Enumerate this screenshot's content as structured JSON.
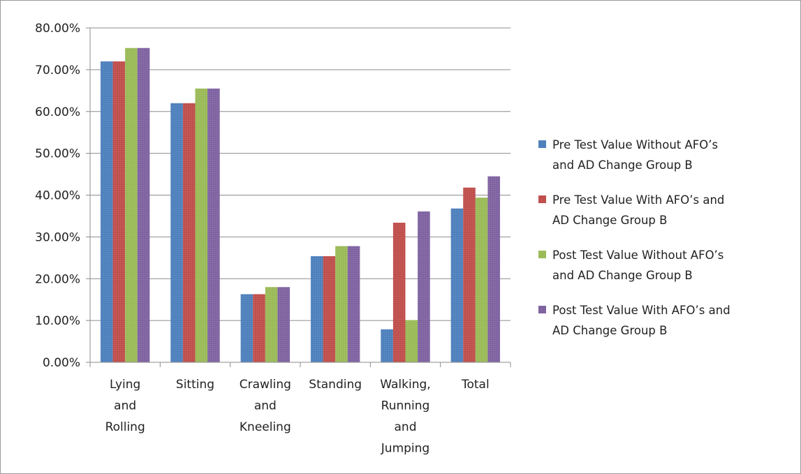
{
  "chart_data": {
    "type": "bar",
    "title": "",
    "xlabel": "",
    "ylabel": "",
    "ylim": [
      0,
      0.8
    ],
    "y_tick_labels": [
      "0.00%",
      "10.00%",
      "20.00%",
      "30.00%",
      "40.00%",
      "50.00%",
      "60.00%",
      "70.00%",
      "80.00%"
    ],
    "grid": true,
    "legend_position": "right",
    "categories": [
      [
        "Lying",
        "and",
        "Rolling"
      ],
      [
        "Sitting"
      ],
      [
        "Crawling",
        "and",
        "Kneeling"
      ],
      [
        "Standing"
      ],
      [
        "Walking,",
        "Running",
        "and",
        "Jumping"
      ],
      [
        "Total"
      ]
    ],
    "series": [
      {
        "name_lines": [
          "Pre Test Value Without AFO’s",
          "and AD Change Group B"
        ],
        "color": "#4f81bd",
        "values": [
          0.72,
          0.62,
          0.163,
          0.254,
          0.079,
          0.368
        ]
      },
      {
        "name_lines": [
          "Pre Test Value With AFO’s and",
          "AD Change Group B"
        ],
        "color": "#c0504d",
        "values": [
          0.72,
          0.62,
          0.163,
          0.254,
          0.334,
          0.418
        ]
      },
      {
        "name_lines": [
          "Post Test Value Without AFO’s",
          "and AD Change Group B"
        ],
        "color": "#9bbb59",
        "values": [
          0.752,
          0.655,
          0.18,
          0.278,
          0.101,
          0.394
        ]
      },
      {
        "name_lines": [
          "Post Test Value With AFO’s and",
          "AD Change Group B"
        ],
        "color": "#8064a2",
        "values": [
          0.752,
          0.655,
          0.18,
          0.278,
          0.361,
          0.445
        ]
      }
    ]
  }
}
